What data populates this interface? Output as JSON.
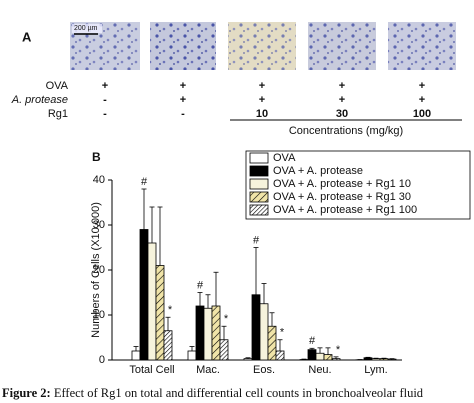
{
  "panel_a": {
    "label": "A",
    "scale_bar": "200 µm",
    "rows": [
      {
        "label": "OVA",
        "marks": [
          "+",
          "+",
          "+",
          "+",
          "+"
        ]
      },
      {
        "label": "A. protease",
        "marks": [
          "-",
          "+",
          "+",
          "+",
          "+"
        ]
      },
      {
        "label": "Rg1",
        "marks": [
          "-",
          "-",
          "10",
          "30",
          "100"
        ]
      }
    ],
    "concentration_label": "Concentrations (mg/kg)"
  },
  "chart_data": {
    "type": "bar",
    "panel_label": "B",
    "y_label": "Numbers of Cells (X10,000)",
    "categories": [
      "Total Cell",
      "Mac.",
      "Eos.",
      "Neu.",
      "Lym."
    ],
    "ylim": [
      0,
      40
    ],
    "yticks": [
      0,
      10,
      20,
      30,
      40
    ],
    "series": [
      {
        "name": "OVA",
        "color": "#ffffff",
        "hatch": "none",
        "values": [
          2,
          2,
          0.3,
          0.1,
          0.05
        ],
        "errors": [
          1,
          1,
          0.2,
          0.1,
          0.05
        ]
      },
      {
        "name": "OVA + A. protease",
        "color": "#000000",
        "hatch": "none",
        "values": [
          29,
          12,
          14.5,
          2.3,
          0.5
        ],
        "errors": [
          9,
          3,
          10.5,
          0.3,
          0.1
        ],
        "significance": [
          "#",
          "#",
          "#",
          "#",
          null
        ]
      },
      {
        "name": "OVA + A. protease + Rg1 10",
        "color": "#f6f3dc",
        "hatch": "none",
        "values": [
          26,
          11.5,
          12.5,
          1.5,
          0.3
        ],
        "errors": [
          8,
          3,
          4.5,
          1.2,
          0.1
        ]
      },
      {
        "name": "OVA + A. protease + Rg1 30",
        "color": "#f0e4a8",
        "hatch": "sparse",
        "values": [
          21,
          12,
          7.5,
          1.2,
          0.3
        ],
        "errors": [
          13,
          7.5,
          3,
          1.5,
          0.1
        ]
      },
      {
        "name": "OVA + A. protease + Rg1 100",
        "color": "#ffffff",
        "hatch": "dense",
        "values": [
          6.5,
          4.5,
          2,
          0.3,
          0.2
        ],
        "errors": [
          3,
          3,
          2.5,
          0.4,
          0.1
        ],
        "significance": [
          "*",
          "*",
          "*",
          "*",
          null
        ]
      }
    ]
  },
  "caption": {
    "label": "Figure 2:",
    "text": "Effect of Rg1 on total and differential cell counts in bronchoalveolar fluid"
  }
}
